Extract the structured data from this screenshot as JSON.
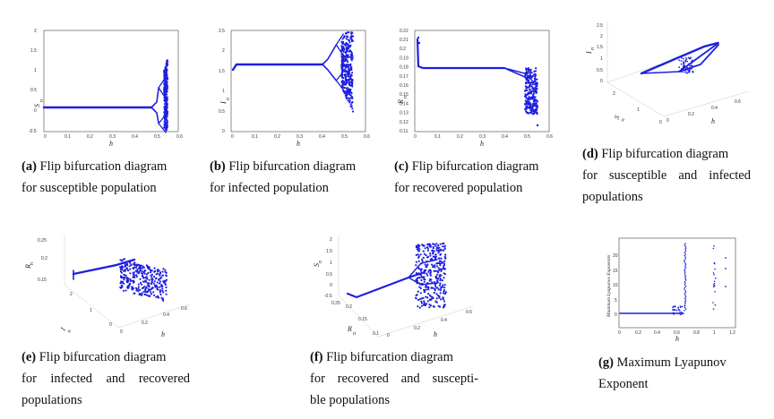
{
  "color": "#1f1fe0",
  "panels": [
    {
      "id": "a",
      "label": "(a)",
      "caption": [
        "Flip bifurcation diagram",
        "for susceptible population"
      ],
      "chart_data": {
        "type": "scatter",
        "xlabel": "h",
        "ylabel": "S",
        "ylabel_sub": "n",
        "xlim": [
          0,
          0.6
        ],
        "ylim": [
          -0.5,
          2
        ],
        "xticks": [
          "0",
          "0.1",
          "0.2",
          "0.3",
          "0.4",
          "0.5",
          "0.6"
        ],
        "yticks": [
          "-0.5",
          "0",
          "0.5",
          "1",
          "1.5",
          "2"
        ]
      }
    },
    {
      "id": "b",
      "label": "(b)",
      "caption": [
        "Flip bifurcation diagram",
        "for infected population"
      ],
      "chart_data": {
        "type": "scatter",
        "xlabel": "h",
        "ylabel": "I",
        "ylabel_sub": "n",
        "xlim": [
          0,
          0.6
        ],
        "ylim": [
          0,
          2.5
        ],
        "xticks": [
          "0",
          "0.1",
          "0.2",
          "0.3",
          "0.4",
          "0.5",
          "0.6"
        ],
        "yticks": [
          "0",
          "0.5",
          "1",
          "1.5",
          "2",
          "2.5"
        ]
      }
    },
    {
      "id": "c",
      "label": "(c)",
      "caption": [
        "Flip bifurcation diagram",
        "for recovered population"
      ],
      "chart_data": {
        "type": "scatter",
        "xlabel": "h",
        "ylabel": "R",
        "ylabel_sub": "n",
        "xlim": [
          0,
          0.6
        ],
        "ylim": [
          0.11,
          0.22
        ],
        "xticks": [
          "0",
          "0.1",
          "0.2",
          "0.3",
          "0.4",
          "0.5",
          "0.6"
        ],
        "yticks": [
          "0.11",
          "0.12",
          "0.13",
          "0.14",
          "0.15",
          "0.16",
          "0.17",
          "0.18",
          "0.19",
          "0.2",
          "0.21",
          "0.22"
        ]
      }
    },
    {
      "id": "d",
      "label": "(d)",
      "caption": [
        "Flip bifurcation diagram",
        "for susceptible and infected",
        "populations"
      ],
      "chart_data": {
        "type": "scatter",
        "xlabel": "h",
        "ylabel": "S",
        "zlabel": "I",
        "ylabel_sub": "n",
        "zlabel_sub": "n",
        "xticks": [
          "0",
          "0.2",
          "0.4",
          "0.6"
        ],
        "yticks": [
          "0",
          "1",
          "2"
        ],
        "zticks": [
          "0",
          "0.5",
          "1",
          "1.5",
          "2",
          "2.5"
        ]
      }
    },
    {
      "id": "e",
      "label": "(e)",
      "caption": [
        "Flip bifurcation diagram",
        "for infected and recovered",
        "populations"
      ],
      "chart_data": {
        "type": "scatter",
        "xlabel": "h",
        "ylabel": "I",
        "zlabel": "R",
        "ylabel_sub": "n",
        "zlabel_sub": "n",
        "xticks": [
          "0",
          "0.2",
          "0.4",
          "0.6"
        ],
        "yticks": [
          "0",
          "1",
          "2"
        ],
        "zticks": [
          "0.15",
          "0.2",
          "0.25"
        ]
      }
    },
    {
      "id": "f",
      "label": "(f)",
      "caption": [
        "Flip bifurcation diagram",
        "for recovered and suscepti-",
        "ble populations"
      ],
      "chart_data": {
        "type": "scatter",
        "xlabel": "h",
        "ylabel": "R",
        "zlabel": "S",
        "ylabel_sub": "n",
        "zlabel_sub": "n",
        "xticks": [
          "0",
          "0.2",
          "0.4",
          "0.6"
        ],
        "yticks": [
          "0.1",
          "0.15",
          "0.2",
          "0.25"
        ],
        "zticks": [
          "-0.5",
          "0",
          "0.5",
          "1",
          "1.5",
          "2"
        ]
      }
    },
    {
      "id": "g",
      "label": "(g)",
      "caption": [
        "Maximum Lyapunov",
        "Exponent"
      ],
      "chart_data": {
        "type": "scatter",
        "xlabel": "h",
        "ylabel": "Maximum Lyapunov Exponents",
        "xlim": [
          0,
          1.2
        ],
        "ylim": [
          -5,
          25
        ],
        "xticks": [
          "0",
          "0.2",
          "0.4",
          "0.6",
          "0.8",
          "1",
          "1.2"
        ],
        "yticks": [
          "0",
          "5",
          "10",
          "15",
          "20"
        ]
      }
    }
  ]
}
